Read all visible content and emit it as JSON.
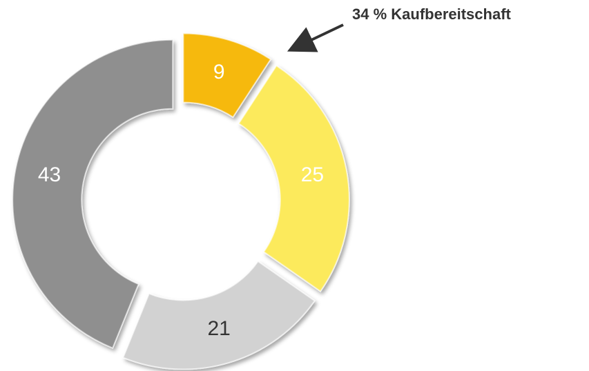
{
  "chart_data": {
    "type": "donut",
    "annotation": "34 % Kaufbereitschaft",
    "values": [
      9,
      25,
      21,
      43
    ],
    "colors": [
      "#f6b90d",
      "#fcea5c",
      "#d2d2d2",
      "#8f8f8f"
    ],
    "label_colors": [
      "#ffffff",
      "#ffffff",
      "#333333",
      "#ffffff"
    ]
  }
}
